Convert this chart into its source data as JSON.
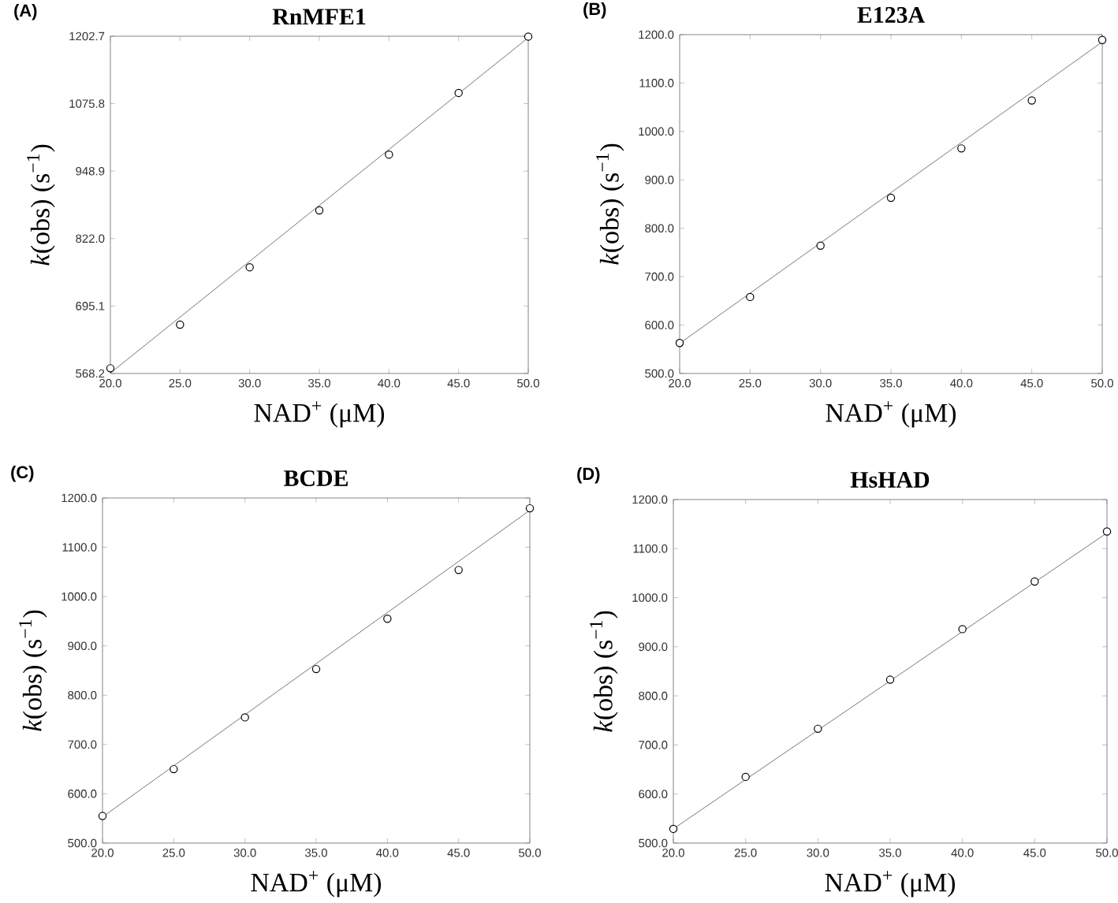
{
  "chart_data": [
    {
      "type": "scatter",
      "title": "RnMFE1",
      "xlabel": "NAD$^{+}$ (μM)",
      "ylabel": "*k*(obs) (s$^{−1}$)",
      "annotations": [
        "(A)"
      ],
      "xlim": [
        20,
        50
      ],
      "ylim": [
        568.2,
        1202.7
      ],
      "xticks": [
        {
          "value": 20,
          "label": "20.0"
        },
        {
          "value": 25,
          "label": "25.0"
        },
        {
          "value": 30,
          "label": "30.0"
        },
        {
          "value": 35,
          "label": "35.0"
        },
        {
          "value": 40,
          "label": "40.0"
        },
        {
          "value": 45,
          "label": "45.0"
        },
        {
          "value": 50,
          "label": "50.0"
        }
      ],
      "yticks": [
        568.2,
        695.1,
        {
          "value": 822,
          "label": "822.0"
        },
        948.9,
        1075.8,
        1202.7
      ],
      "series": [
        {
          "color": "#000000",
          "marker": "circle",
          "x": [
            20,
            25,
            30,
            35,
            40,
            45,
            50
          ],
          "values": [
            578,
            660,
            768,
            875,
            980,
            1096,
            1202
          ]
        },
        {
          "type": "line",
          "color": "#555555",
          "line_style": "solid",
          "x": [
            20,
            50
          ],
          "values": [
            569,
            1200
          ]
        }
      ]
    },
    {
      "type": "scatter",
      "title": "E123A",
      "xlabel": "NAD$^{+}$ (μM)",
      "ylabel": "*k*(obs) (s$^{−1}$)",
      "annotations": [
        "(B)"
      ],
      "xlim": [
        20,
        50
      ],
      "ylim": [
        500,
        1200
      ],
      "xticks": [
        {
          "value": 20,
          "label": "20.0"
        },
        {
          "value": 25,
          "label": "25.0"
        },
        {
          "value": 30,
          "label": "30.0"
        },
        {
          "value": 35,
          "label": "35.0"
        },
        {
          "value": 40,
          "label": "40.0"
        },
        {
          "value": 45,
          "label": "45.0"
        },
        {
          "value": 50,
          "label": "50.0"
        }
      ],
      "yticks": [
        {
          "value": 500,
          "label": "500.0"
        },
        {
          "value": 600,
          "label": "600.0"
        },
        {
          "value": 700,
          "label": "700.0"
        },
        {
          "value": 800,
          "label": "800.0"
        },
        {
          "value": 900,
          "label": "900.0"
        },
        {
          "value": 1000,
          "label": "1000.0"
        },
        {
          "value": 1100,
          "label": "1100.0"
        },
        {
          "value": 1200,
          "label": "1200.0"
        }
      ],
      "series": [
        {
          "color": "#000000",
          "marker": "circle",
          "x": [
            20,
            25,
            30,
            35,
            40,
            45,
            50
          ],
          "values": [
            563,
            658,
            764,
            863,
            965,
            1064,
            1189
          ]
        },
        {
          "type": "line",
          "color": "#555555",
          "line_style": "solid",
          "x": [
            20,
            50
          ],
          "values": [
            562,
            1185
          ]
        }
      ]
    },
    {
      "type": "scatter",
      "title": "BCDE",
      "xlabel": "NAD$^{+}$ (μM)",
      "ylabel": "*k*(obs) (s$^{−1}$)",
      "annotations": [
        "(C)"
      ],
      "xlim": [
        20,
        50
      ],
      "ylim": [
        500,
        1200
      ],
      "xticks": [
        {
          "value": 20,
          "label": "20.0"
        },
        {
          "value": 25,
          "label": "25.0"
        },
        {
          "value": 30,
          "label": "30.0"
        },
        {
          "value": 35,
          "label": "35.0"
        },
        {
          "value": 40,
          "label": "40.0"
        },
        {
          "value": 45,
          "label": "45.0"
        },
        {
          "value": 50,
          "label": "50.0"
        }
      ],
      "yticks": [
        {
          "value": 500,
          "label": "500.0"
        },
        {
          "value": 600,
          "label": "600.0"
        },
        {
          "value": 700,
          "label": "700.0"
        },
        {
          "value": 800,
          "label": "800.0"
        },
        {
          "value": 900,
          "label": "900.0"
        },
        {
          "value": 1000,
          "label": "1000.0"
        },
        {
          "value": 1100,
          "label": "1100.0"
        },
        {
          "value": 1200,
          "label": "1200.0"
        }
      ],
      "series": [
        {
          "color": "#000000",
          "marker": "circle",
          "x": [
            20,
            25,
            30,
            35,
            40,
            45,
            50
          ],
          "values": [
            555,
            650,
            755,
            853,
            955,
            1054,
            1179
          ]
        },
        {
          "type": "line",
          "color": "#555555",
          "line_style": "solid",
          "x": [
            20,
            50
          ],
          "values": [
            553,
            1175
          ]
        }
      ]
    },
    {
      "type": "scatter",
      "title": "HsHAD",
      "xlabel": "NAD$^{+}$ (μM)",
      "ylabel": "*k*(obs) (s$^{−1}$)",
      "annotations": [
        "(D)"
      ],
      "xlim": [
        20,
        50
      ],
      "ylim": [
        500,
        1200
      ],
      "xticks": [
        {
          "value": 20,
          "label": "20.0"
        },
        {
          "value": 25,
          "label": "25.0"
        },
        {
          "value": 30,
          "label": "30.0"
        },
        {
          "value": 35,
          "label": "35.0"
        },
        {
          "value": 40,
          "label": "40.0"
        },
        {
          "value": 45,
          "label": "45.0"
        },
        {
          "value": 50,
          "label": "50.0"
        }
      ],
      "yticks": [
        {
          "value": 500,
          "label": "500.0"
        },
        {
          "value": 600,
          "label": "600.0"
        },
        {
          "value": 700,
          "label": "700.0"
        },
        {
          "value": 800,
          "label": "800.0"
        },
        {
          "value": 900,
          "label": "900.0"
        },
        {
          "value": 1000,
          "label": "1000.0"
        },
        {
          "value": 1100,
          "label": "1100.0"
        },
        {
          "value": 1200,
          "label": "1200.0"
        }
      ],
      "series": [
        {
          "color": "#000000",
          "marker": "circle",
          "x": [
            20,
            25,
            30,
            35,
            40,
            45,
            50
          ],
          "values": [
            529,
            635,
            733,
            833,
            936,
            1033,
            1135
          ]
        },
        {
          "type": "line",
          "color": "#555555",
          "line_style": "solid",
          "x": [
            20,
            50
          ],
          "values": [
            529,
            1132
          ]
        }
      ]
    }
  ]
}
